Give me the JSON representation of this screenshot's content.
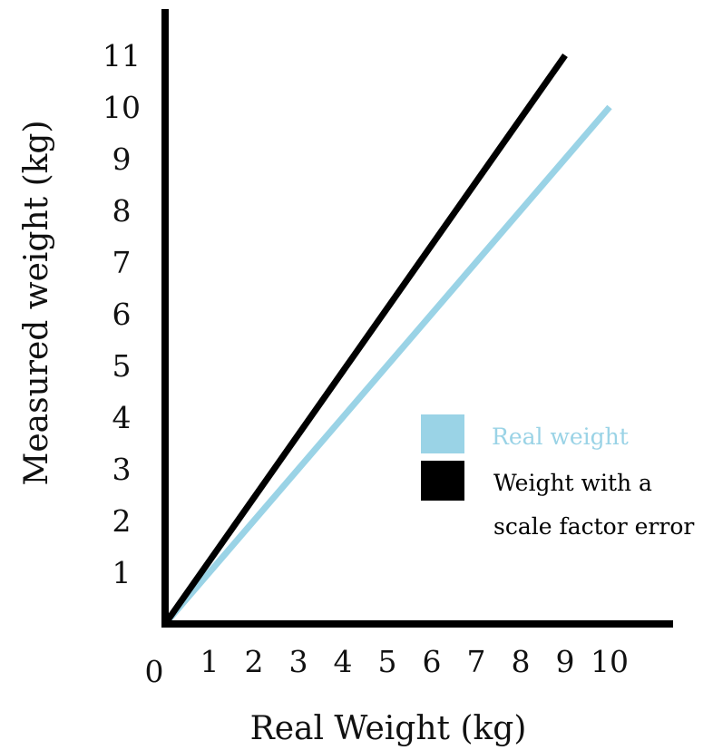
{
  "chart_data": {
    "type": "line",
    "title": "",
    "xlabel": "Real Weight (kg)",
    "ylabel": "Measured weight (kg)",
    "origin_label": "0",
    "xlim": [
      0,
      11.5
    ],
    "ylim": [
      0,
      11.5
    ],
    "x_ticks": [
      "1",
      "2",
      "3",
      "4",
      "5",
      "6",
      "7",
      "8",
      "9",
      "10"
    ],
    "y_ticks": [
      "1",
      "2",
      "3",
      "4",
      "5",
      "6",
      "7",
      "8",
      "9",
      "10",
      "11"
    ],
    "grid": false,
    "legend_position": "center-right",
    "series": [
      {
        "name": "Real weight",
        "color": "#9ad3e6",
        "x": [
          0,
          10
        ],
        "y": [
          0,
          10
        ]
      },
      {
        "name": "Weight with a scale factor error",
        "name_lines": [
          "Weight with a",
          "scale factor error"
        ],
        "color": "#000000",
        "x": [
          0,
          9
        ],
        "y": [
          0,
          11
        ]
      }
    ]
  }
}
